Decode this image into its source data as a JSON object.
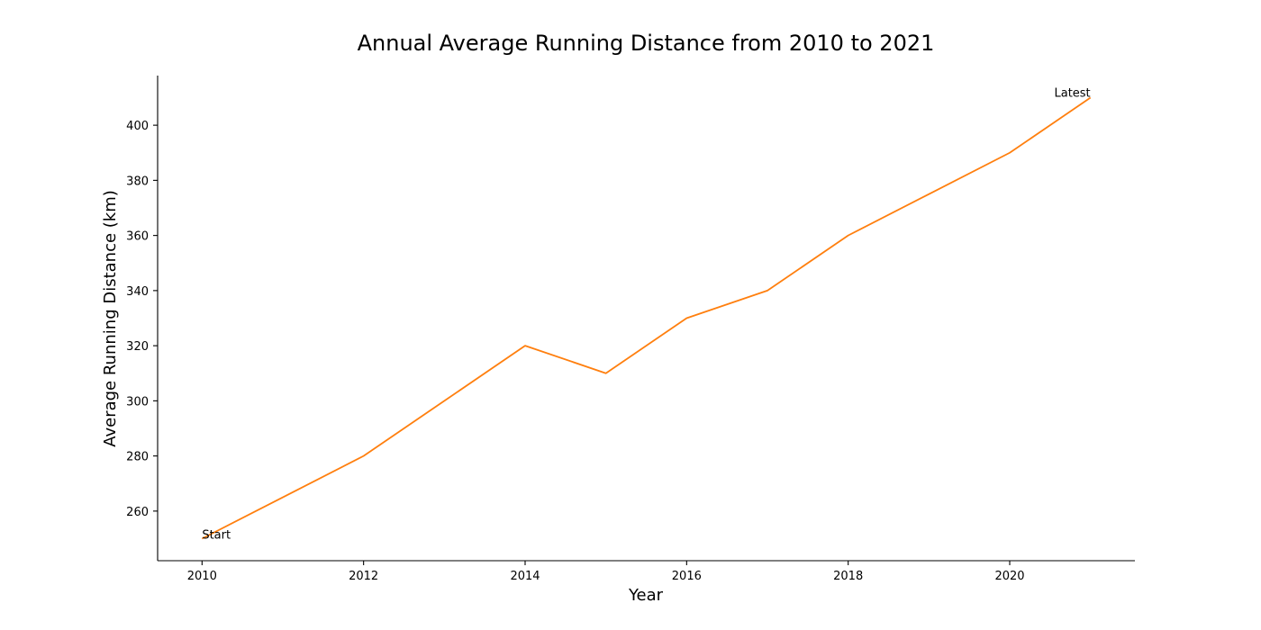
{
  "chart_data": {
    "type": "line",
    "title": "Annual Average Running Distance from 2010 to 2021",
    "xlabel": "Year",
    "ylabel": "Average Running Distance (km)",
    "x": [
      2010,
      2011,
      2012,
      2013,
      2014,
      2015,
      2016,
      2017,
      2018,
      2019,
      2020,
      2021
    ],
    "series": [
      {
        "values": [
          250,
          265,
          280,
          300,
          320,
          310,
          330,
          340,
          360,
          375,
          390,
          410
        ],
        "color": "#ff7f0e"
      }
    ],
    "xticks": [
      2010,
      2012,
      2014,
      2016,
      2018,
      2020
    ],
    "yticks": [
      260,
      280,
      300,
      320,
      340,
      360,
      380,
      400
    ],
    "xlim": [
      2009.45,
      2021.55
    ],
    "ylim": [
      242,
      418
    ],
    "annotations": [
      {
        "text": "Start",
        "x": 2010,
        "y": 250
      },
      {
        "text": "Latest",
        "x": 2021,
        "y": 410
      }
    ],
    "grid": false,
    "legend": "none"
  }
}
